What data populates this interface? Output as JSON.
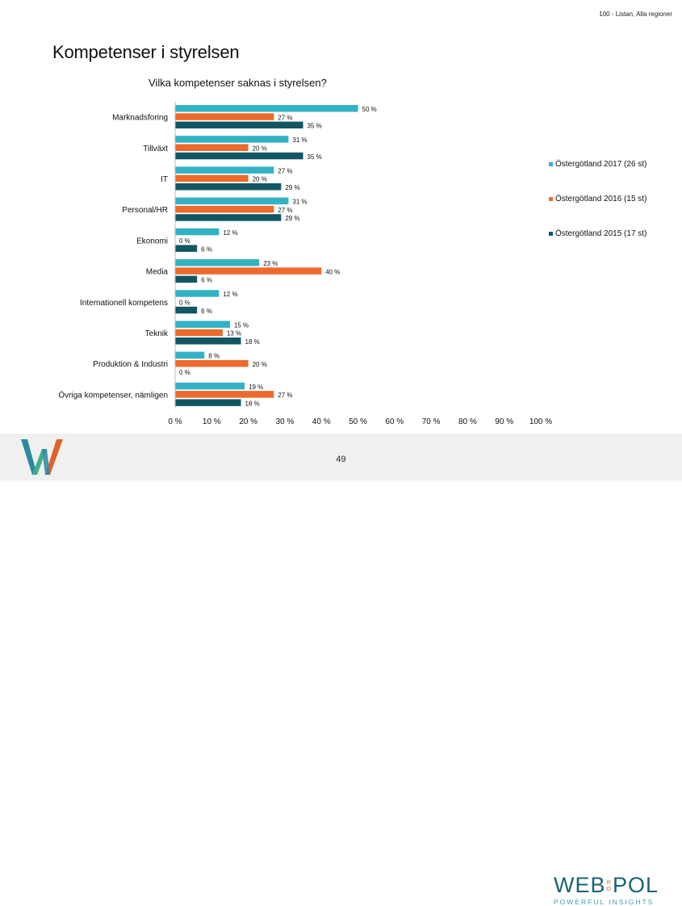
{
  "header": {
    "tag": "100 - Listan, Alla regioner",
    "title": "Kompetenser i styrelsen"
  },
  "footer": {
    "page_number": "49",
    "brand_name_left": "WEB",
    "brand_name_mid_top": "R",
    "brand_name_mid_bottom": "O",
    "brand_name_right": "POL",
    "brand_tagline": "POWERFUL INSIGHTS",
    "logo_icon": "w-logo-icon",
    "logo_colors": [
      "#2c8aa0",
      "#3fae8c",
      "#e0622b"
    ]
  },
  "chart_data": {
    "type": "bar",
    "orientation": "horizontal",
    "title": "Vilka kompetenser saknas i styrelsen?",
    "categories": [
      "Marknadsforing",
      "Tillväxt",
      "IT",
      "Personal/HR",
      "Ekonomi",
      "Media",
      "Internationell kompetens",
      "Teknik",
      "Produktion & Industri",
      "Övriga kompetenser, nämligen"
    ],
    "series": [
      {
        "name": "Östergötland 2017 (26 st)",
        "color": "#33b2c3",
        "values": [
          50,
          31,
          27,
          31,
          12,
          23,
          12,
          15,
          8,
          19
        ]
      },
      {
        "name": "Östergötland 2016 (15 st)",
        "color": "#ec6a2c",
        "values": [
          27,
          20,
          20,
          27,
          0,
          40,
          0,
          13,
          20,
          27
        ]
      },
      {
        "name": "Östergötland 2015 (17 st)",
        "color": "#125663",
        "values": [
          35,
          35,
          29,
          29,
          6,
          6,
          6,
          18,
          0,
          18
        ]
      }
    ],
    "value_suffix": " %",
    "xlim": [
      0,
      100
    ],
    "xticks": [
      "0 %",
      "10 %",
      "20 %",
      "30 %",
      "40 %",
      "50 %",
      "60 %",
      "70 %",
      "80 %",
      "90 %",
      "100 %"
    ],
    "grid": false,
    "legend_position": "right"
  }
}
